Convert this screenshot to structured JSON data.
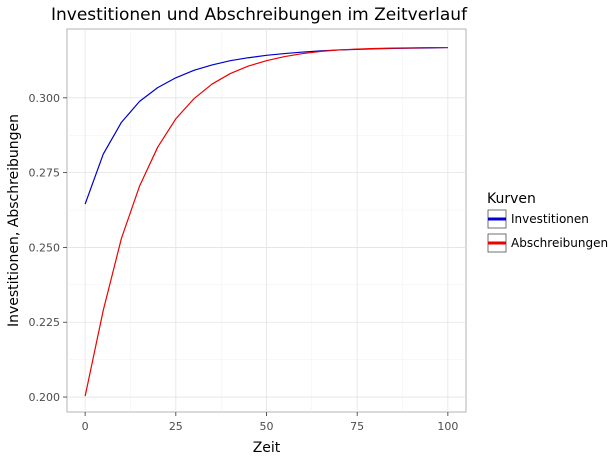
{
  "chart_data": {
    "type": "line",
    "title": "Investitionen und Abschreibungen im Zeitverlauf",
    "xlabel": "Zeit",
    "ylabel": "Investitionen, Abschreibungen",
    "xlim": [
      -5,
      105
    ],
    "ylim": [
      0.195,
      0.323
    ],
    "x_ticks": [
      0,
      25,
      50,
      75,
      100
    ],
    "y_ticks": [
      0.2,
      0.225,
      0.25,
      0.275,
      0.3
    ],
    "x_tick_labels": [
      "0",
      "25",
      "50",
      "75",
      "100"
    ],
    "y_tick_labels": [
      "0.200",
      "0.225",
      "0.250",
      "0.275",
      "0.300"
    ],
    "grid": true,
    "legend": {
      "title": "Kurven",
      "position": "right"
    },
    "x": [
      0,
      5,
      10,
      15,
      20,
      25,
      30,
      35,
      40,
      45,
      50,
      55,
      60,
      65,
      70,
      75,
      80,
      85,
      90,
      95,
      100
    ],
    "series": [
      {
        "name": "Investitionen",
        "color": "#0000cc",
        "values": [
          0.2645,
          0.2812,
          0.2918,
          0.2988,
          0.3034,
          0.3067,
          0.3092,
          0.311,
          0.3124,
          0.3134,
          0.3142,
          0.3148,
          0.3153,
          0.3157,
          0.316,
          0.3162,
          0.3164,
          0.3165,
          0.3166,
          0.3167,
          0.3168
        ]
      },
      {
        "name": "Abschreibungen",
        "color": "#ee0000",
        "values": [
          0.2003,
          0.229,
          0.253,
          0.2705,
          0.2835,
          0.293,
          0.2997,
          0.3046,
          0.3081,
          0.3106,
          0.3124,
          0.3138,
          0.3148,
          0.3155,
          0.316,
          0.3163,
          0.3165,
          0.3166,
          0.3167,
          0.3168,
          0.3168
        ]
      }
    ]
  }
}
